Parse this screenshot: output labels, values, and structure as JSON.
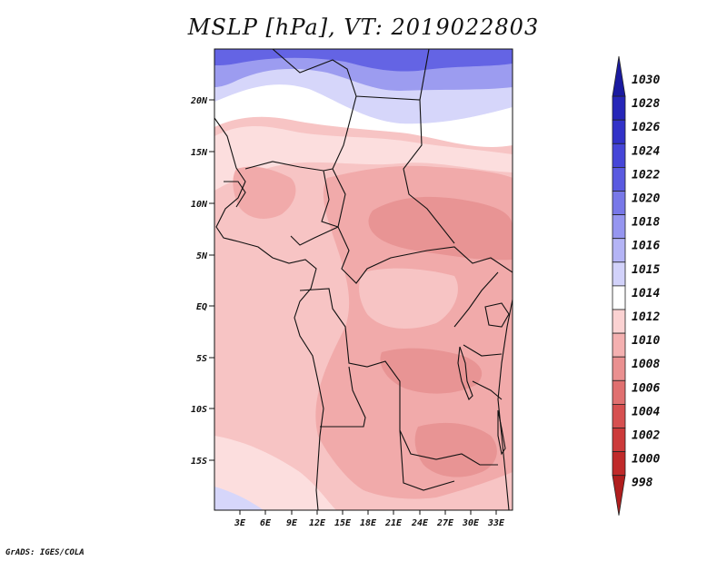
{
  "title": "MSLP [hPa], VT: 2019022803",
  "credit": "GrADS: IGES/COLA",
  "lat_labels": [
    "20N",
    "15N",
    "10N",
    "5N",
    "EQ",
    "5S",
    "10S",
    "15S"
  ],
  "lon_labels": [
    "3E",
    "6E",
    "9E",
    "12E",
    "15E",
    "18E",
    "21E",
    "24E",
    "27E",
    "30E",
    "33E"
  ],
  "colorbar": {
    "levels": [
      "1030",
      "1028",
      "1026",
      "1024",
      "1022",
      "1020",
      "1018",
      "1016",
      "1015",
      "1014",
      "1012",
      "1010",
      "1008",
      "1006",
      "1004",
      "1002",
      "1000",
      "998"
    ],
    "colors": [
      "#1a1aa0",
      "#2626b8",
      "#3232c8",
      "#4646d8",
      "#5a5ae0",
      "#7878e8",
      "#9696f0",
      "#b4b4f5",
      "#d2d2fa",
      "#ffffff",
      "#fbd2d2",
      "#f4b0b0",
      "#ea9090",
      "#e07070",
      "#d65050",
      "#cc3a3a",
      "#c02a2a",
      "#b01e1e"
    ]
  },
  "map_colors": {
    "deep_blue": "#6464e4",
    "mid_blue": "#9c9cf0",
    "light_blue": "#d6d6fa",
    "white": "#ffffff",
    "pale_pink": "#fcdede",
    "light_pink": "#f7c4c4",
    "pink": "#f1aaaa",
    "rose": "#e89494"
  }
}
